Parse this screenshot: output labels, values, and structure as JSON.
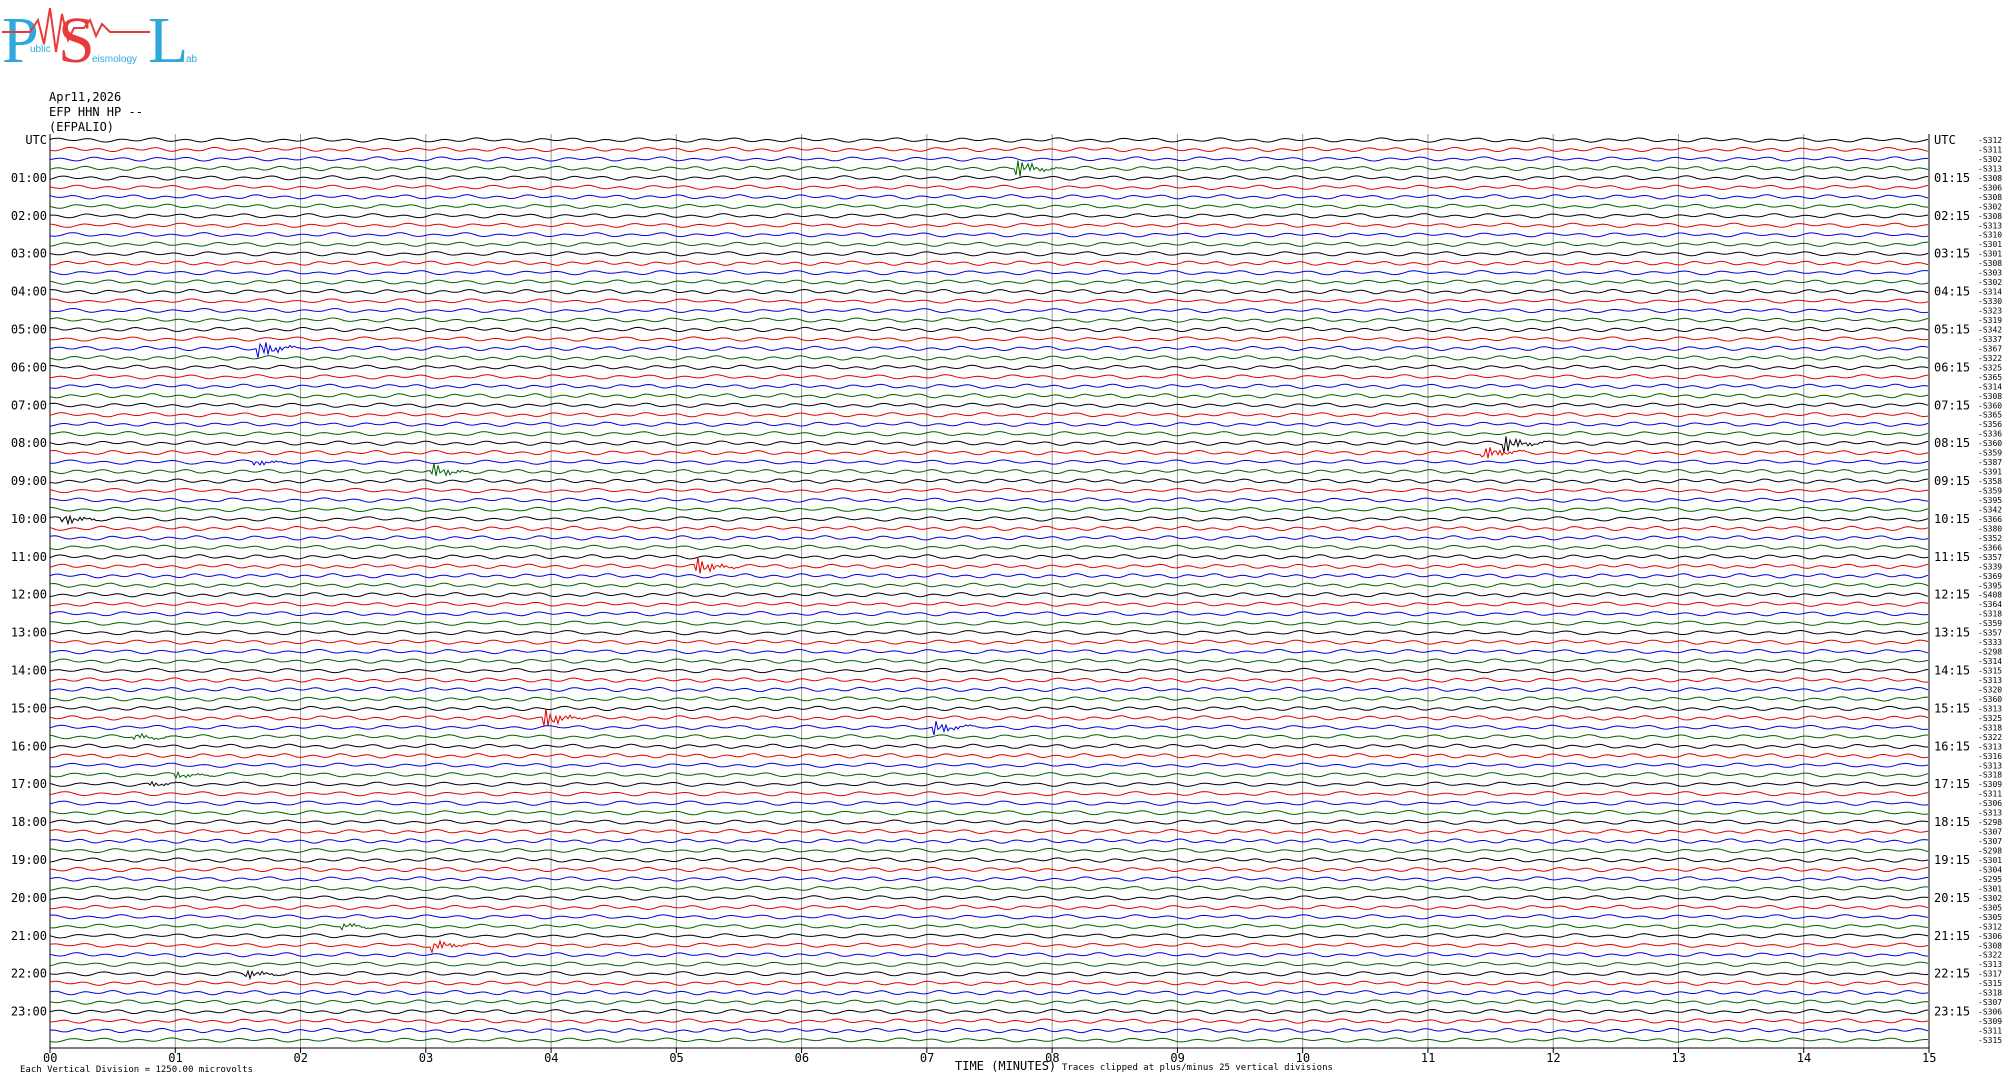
{
  "logo": {
    "letters": [
      "P",
      "S",
      "L"
    ],
    "small": [
      "ublic",
      "eismology",
      "ab"
    ]
  },
  "header": {
    "date": "Apr11,2026",
    "station": "EFP HHN HP --",
    "site": "(EFPALIO)"
  },
  "left_labels": [
    "UTC",
    "01:00",
    "02:00",
    "03:00",
    "04:00",
    "05:00",
    "06:00",
    "07:00",
    "08:00",
    "09:00",
    "10:00",
    "11:00",
    "12:00",
    "13:00",
    "14:00",
    "15:00",
    "16:00",
    "17:00",
    "18:00",
    "19:00",
    "20:00",
    "21:00",
    "22:00",
    "23:00"
  ],
  "right_labels": [
    "UTC",
    "01:15",
    "02:15",
    "03:15",
    "04:15",
    "05:15",
    "06:15",
    "07:15",
    "08:15",
    "09:15",
    "10:15",
    "11:15",
    "12:15",
    "13:15",
    "14:15",
    "15:15",
    "16:15",
    "17:15",
    "18:15",
    "19:15",
    "20:15",
    "21:15",
    "22:15",
    "23:15"
  ],
  "trace_codes": [
    "-S312",
    "-S311",
    "-S302",
    "-S313",
    "-S308",
    "-S306",
    "-S308",
    "-S302",
    "-S308",
    "-S313",
    "-S310",
    "-S301",
    "-S301",
    "-S308",
    "-S303",
    "-S302",
    "-S314",
    "-S330",
    "-S323",
    "-S319",
    "-S342",
    "-S337",
    "-S367",
    "-S322",
    "-S325",
    "-S365",
    "-S314",
    "-S308",
    "-S360",
    "-S365",
    "-S356",
    "-S336",
    "-S360",
    "-S359",
    "-S387",
    "-S391",
    "-S358",
    "-S359",
    "-S395",
    "-S342",
    "-S366",
    "-S380",
    "-S352",
    "-S366",
    "-S357",
    "-S339",
    "-S369",
    "-S395",
    "-S408",
    "-S364",
    "-S318",
    "-S359",
    "-S357",
    "-S333",
    "-S298",
    "-S314",
    "-S315",
    "-S313",
    "-S320",
    "-S360",
    "-S313",
    "-S325",
    "-S318",
    "-S322",
    "-S313",
    "-S316",
    "-S313",
    "-S318",
    "-S309",
    "-S311",
    "-S306",
    "-S313",
    "-S298",
    "-S307",
    "-S307",
    "-S298",
    "-S301",
    "-S304",
    "-S295",
    "-S301",
    "-S302",
    "-S305",
    "-S305",
    "-S312",
    "-S306",
    "-S308",
    "-S322",
    "-S313",
    "-S317",
    "-S315",
    "-S318",
    "-S307",
    "-S306",
    "-S309",
    "-S311",
    "-S315"
  ],
  "x_ticks": [
    "00",
    "01",
    "02",
    "03",
    "04",
    "05",
    "06",
    "07",
    "08",
    "09",
    "10",
    "11",
    "12",
    "13",
    "14",
    "15"
  ],
  "footer": {
    "division": "Each Vertical Division = 1250.00 microvolts",
    "axis_title": "TIME (MINUTES)",
    "clip_note": "Traces clipped at plus/minus 25 vertical divisions"
  }
}
